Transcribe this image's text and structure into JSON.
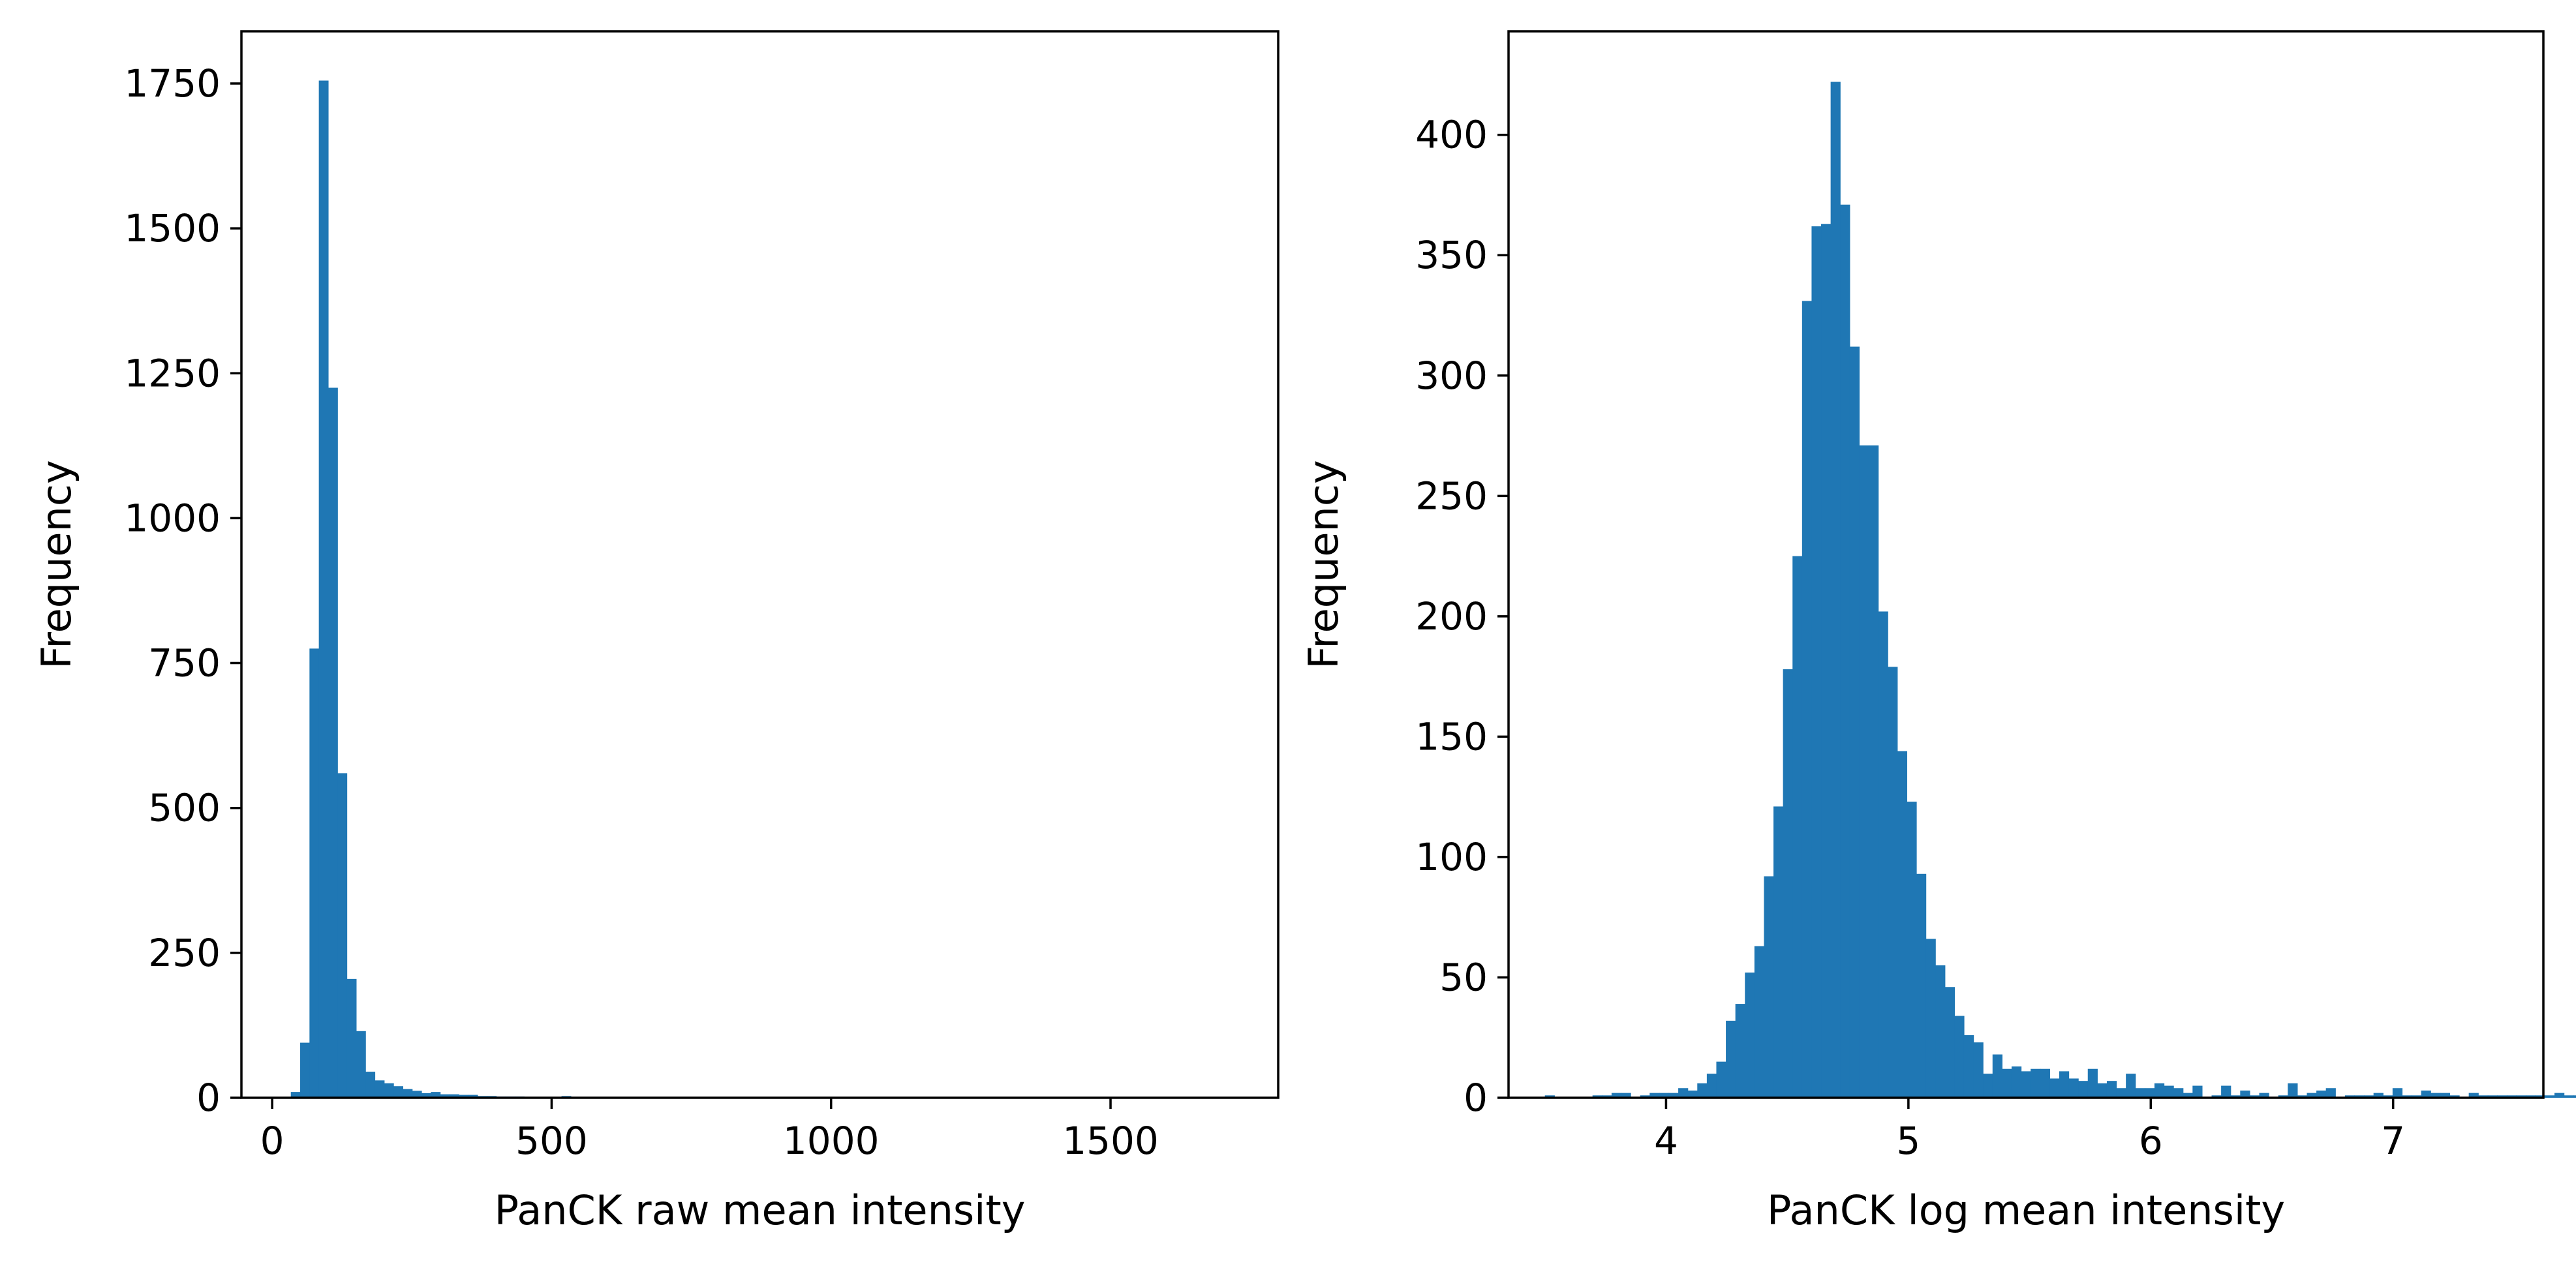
{
  "chart_data": [
    {
      "type": "bar",
      "subtype": "histogram",
      "xlabel": "PanCK raw mean intensity",
      "ylabel": "Frequency",
      "xlim": [
        -55,
        1800
      ],
      "ylim": [
        0,
        1840
      ],
      "xticks": [
        0,
        500,
        1000,
        1500
      ],
      "yticks": [
        0,
        250,
        500,
        750,
        1000,
        1250,
        1500,
        1750
      ],
      "grid": false,
      "color": "#1f77b4",
      "bin_width": 16.7,
      "bin_start": 33.4,
      "values": [
        10,
        95,
        775,
        1755,
        1225,
        560,
        205,
        115,
        45,
        30,
        25,
        20,
        15,
        12,
        8,
        10,
        6,
        6,
        5,
        5,
        3,
        3,
        2,
        2,
        2,
        1,
        1,
        1,
        1,
        3,
        1,
        1
      ]
    },
    {
      "type": "bar",
      "subtype": "histogram",
      "xlabel": "PanCK log mean intensity",
      "ylabel": "Frequency",
      "xlim": [
        3.35,
        7.62
      ],
      "ylim": [
        0,
        443
      ],
      "xticks": [
        4,
        5,
        6,
        7
      ],
      "yticks": [
        0,
        50,
        100,
        150,
        200,
        250,
        300,
        350,
        400
      ],
      "grid": false,
      "color": "#1f77b4",
      "bin_width": 0.0393,
      "bin_start": 3.5,
      "values": [
        1,
        0,
        0,
        0,
        0,
        1,
        1,
        2,
        2,
        0,
        1,
        2,
        2,
        2,
        4,
        3,
        6,
        10,
        15,
        32,
        39,
        52,
        63,
        92,
        121,
        178,
        225,
        331,
        362,
        363,
        422,
        371,
        312,
        271,
        271,
        202,
        179,
        144,
        123,
        93,
        66,
        55,
        46,
        34,
        26,
        23,
        10,
        18,
        12,
        13,
        11,
        12,
        12,
        8,
        11,
        8,
        7,
        12,
        6,
        7,
        4,
        10,
        4,
        4,
        6,
        5,
        4,
        2,
        5,
        0,
        1,
        5,
        1,
        3,
        1,
        2,
        0,
        1,
        6,
        1,
        2,
        3,
        4,
        0,
        1,
        1,
        1,
        2,
        1,
        4,
        1,
        1,
        3,
        2,
        2,
        1,
        0,
        2,
        1,
        1,
        1,
        1,
        1,
        1,
        1,
        1,
        2,
        1,
        1,
        1
      ]
    }
  ]
}
